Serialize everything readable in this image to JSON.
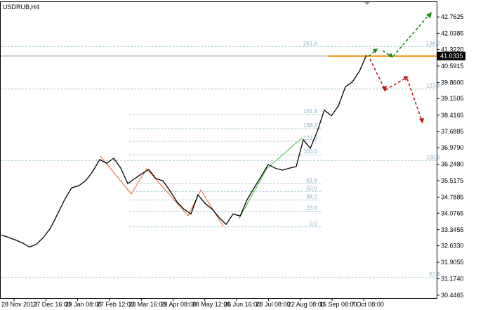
{
  "chart_data": {
    "type": "line",
    "title": "USDRUB,H4",
    "color": "#000000",
    "values": [
      33.11,
      33.01,
      32.89,
      32.76,
      32.58,
      32.7,
      33.01,
      33.42,
      34.04,
      34.67,
      35.2,
      35.29,
      35.51,
      35.92,
      36.45,
      36.29,
      36.51,
      36.07,
      35.39,
      35.61,
      35.82,
      36.01,
      35.61,
      35.51,
      35.07,
      34.58,
      34.26,
      34.04,
      34.89,
      34.51,
      34.26,
      33.89,
      33.58,
      34.04,
      33.95,
      34.67,
      35.2,
      35.7,
      36.23,
      36.07,
      35.98,
      36.07,
      36.14,
      37.33,
      36.95,
      37.7,
      38.64,
      38.39,
      38.82,
      39.67,
      39.89,
      40.36,
      41.08
    ],
    "x_labels": [
      "28 Nov 2013",
      "27 Dec 16:00",
      "29 Jan 08:00",
      "27 Feb 12:00",
      "28 Mar 16:00",
      "29 Apr 08:00",
      "28 May 12:00",
      "26 Jun 16:00",
      "28 Jul 08:00",
      "22 Aug 08:00",
      "15 Sep 08:00",
      "7 Oct 08:00"
    ],
    "ylim": [
      30.32,
      43.42
    ],
    "yticks": [
      42.7625,
      42.0385,
      {
        "value": 41.322,
        "label": "41.3220"
      },
      40.5915,
      {
        "value": 39.86,
        "label": "39.8600"
      },
      39.1505,
      38.4165,
      37.6885,
      {
        "value": 36.979,
        "label": "36.9790"
      },
      {
        "value": 36.248,
        "label": "36.2480"
      },
      35.5175,
      34.7885,
      34.0765,
      33.3455,
      {
        "value": 32.633,
        "label": "32.6330"
      },
      31.9055,
      {
        "value": 31.174,
        "label": "31.1740"
      },
      30.4465
    ],
    "last_price": 41.0335,
    "fib_inner": [
      {
        "price": 38.44,
        "label": "161.8"
      },
      {
        "price": 37.82,
        "label": "138.2"
      },
      {
        "price": 37.26,
        "label": "123.6"
      },
      {
        "price": 36.66,
        "label": "100.0"
      },
      {
        "price": 35.38,
        "label": "61.8"
      },
      {
        "price": 35.04,
        "label": "50.0"
      },
      {
        "price": 34.66,
        "label": "38.2"
      },
      {
        "price": 34.16,
        "label": "23.6"
      },
      {
        "price": 33.47,
        "label": "0.0"
      }
    ],
    "fib_outer": [
      {
        "price": 41.45,
        "label": "261.8"
      },
      {
        "price": 41.45,
        "label": "138.2"
      },
      {
        "price": 39.57,
        "label": "123.6"
      },
      {
        "price": 36.41,
        "label": "100.0"
      },
      {
        "price": 31.23,
        "label": "61.8"
      }
    ]
  }
}
